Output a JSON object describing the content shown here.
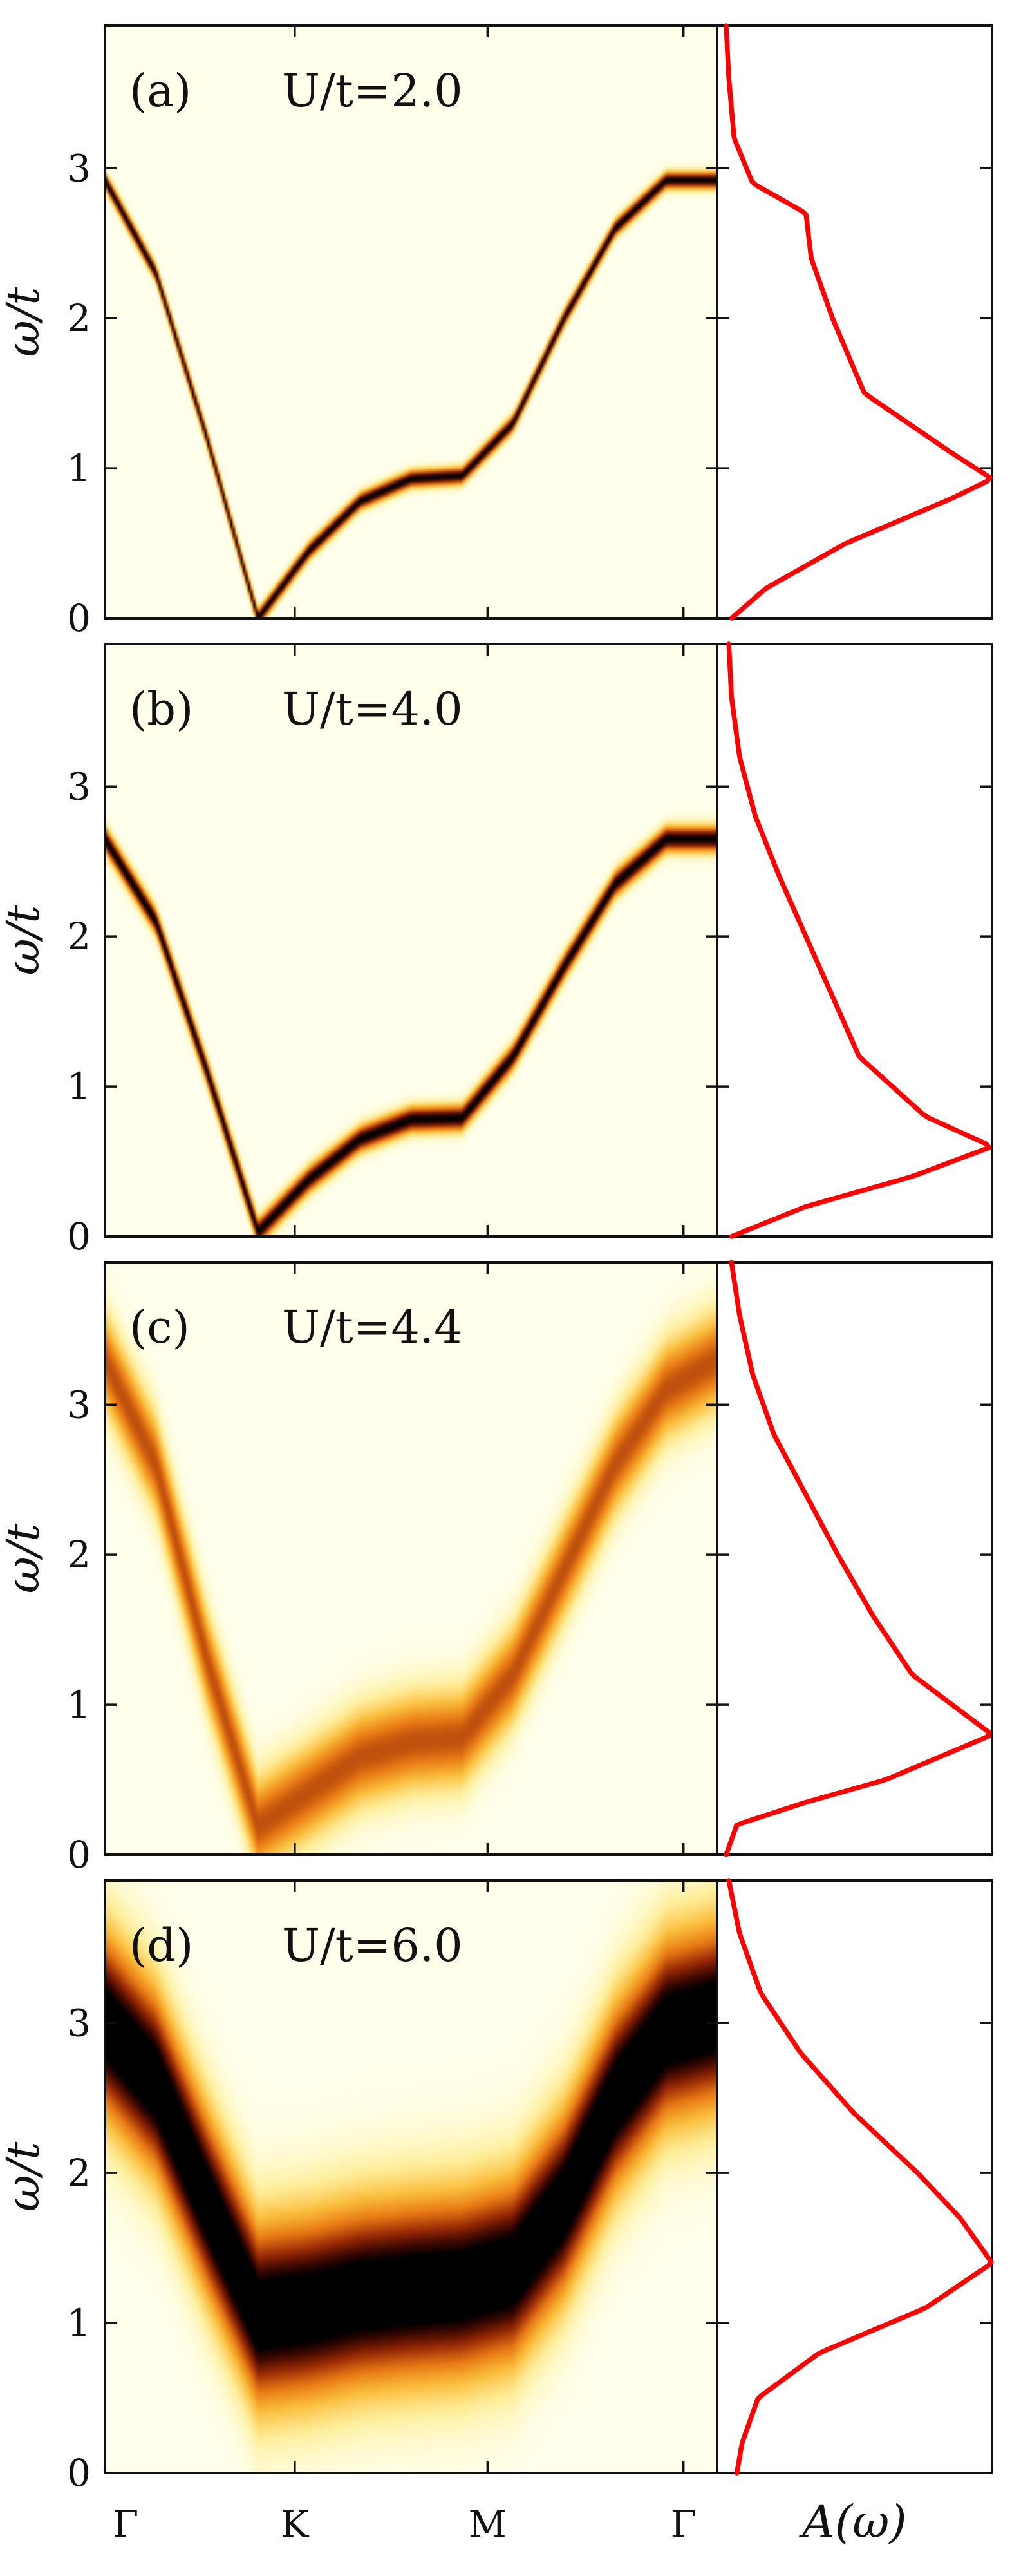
{
  "chart_data": {
    "type": "heatmap",
    "title": "",
    "ylabel": "ω/t",
    "ylim": [
      0,
      3.95
    ],
    "yticks": [
      0,
      1,
      2,
      3
    ],
    "ytick_labels": [
      "0",
      "1",
      "2",
      "3"
    ],
    "xtick_labels": [
      "Γ",
      "K",
      "M",
      "Γ"
    ],
    "dos_xlabel": "A(ω)",
    "colors": {
      "dos_line": "#ff0000",
      "spectral_peak": "#000000",
      "spectral_mid": "#f08a10",
      "spectral_background": "#ffffe6"
    },
    "colormap": "afmhot_r",
    "grid": false,
    "legend": "none",
    "panels": [
      {
        "label": "(a)",
        "param": "U/t=2.0",
        "dispersion": {
          "x": [
            0,
            0.25,
            0.5,
            0.75,
            1.0,
            1.25,
            1.5,
            1.75,
            2.0,
            2.25,
            2.5,
            2.75,
            3.0
          ],
          "omega": [
            2.92,
            2.3,
            1.2,
            0.0,
            0.45,
            0.78,
            0.93,
            0.95,
            1.3,
            2.0,
            2.6,
            2.92,
            2.92
          ]
        },
        "broadening": 0.04,
        "intensity": 1.0,
        "dos": {
          "omega": [
            0,
            0.2,
            0.5,
            0.8,
            0.93,
            1.1,
            1.5,
            2.0,
            2.4,
            2.7,
            2.9,
            3.2,
            3.6,
            3.95
          ],
          "A": [
            0.02,
            0.15,
            0.45,
            0.85,
            1.0,
            0.85,
            0.52,
            0.4,
            0.32,
            0.3,
            0.1,
            0.03,
            0.01,
            0.0
          ]
        }
      },
      {
        "label": "(b)",
        "param": "U/t=4.0",
        "dispersion": {
          "x": [
            0,
            0.25,
            0.5,
            0.75,
            1.0,
            1.25,
            1.5,
            1.75,
            2.0,
            2.25,
            2.5,
            2.75,
            3.0
          ],
          "omega": [
            2.65,
            2.1,
            1.1,
            0.03,
            0.38,
            0.65,
            0.78,
            0.79,
            1.2,
            1.8,
            2.35,
            2.65,
            2.65
          ]
        },
        "broadening": 0.06,
        "intensity": 1.0,
        "dos": {
          "omega": [
            0,
            0.2,
            0.4,
            0.6,
            0.8,
            1.2,
            1.6,
            2.0,
            2.4,
            2.8,
            3.2,
            3.6,
            3.95
          ],
          "A": [
            0.02,
            0.3,
            0.7,
            1.0,
            0.75,
            0.5,
            0.4,
            0.3,
            0.2,
            0.11,
            0.05,
            0.02,
            0.01
          ]
        }
      },
      {
        "label": "(c)",
        "param": "U/t=4.4",
        "dispersion": {
          "x": [
            0,
            0.25,
            0.5,
            0.75,
            1.0,
            1.25,
            1.5,
            1.75,
            2.0,
            2.25,
            2.5,
            2.75,
            3.0
          ],
          "omega": [
            3.3,
            2.6,
            1.3,
            0.19,
            0.42,
            0.65,
            0.75,
            0.78,
            1.2,
            1.9,
            2.6,
            3.1,
            3.3
          ]
        },
        "broadening": 0.22,
        "intensity": 0.65,
        "dos": {
          "omega": [
            0,
            0.1,
            0.2,
            0.35,
            0.5,
            0.8,
            1.2,
            1.6,
            2.0,
            2.4,
            2.8,
            3.2,
            3.6,
            3.95
          ],
          "A": [
            0.0,
            0.02,
            0.04,
            0.3,
            0.6,
            1.0,
            0.7,
            0.55,
            0.42,
            0.3,
            0.18,
            0.1,
            0.05,
            0.02
          ]
        }
      },
      {
        "label": "(d)",
        "param": "U/t=6.0",
        "dispersion": {
          "x": [
            0,
            0.25,
            0.5,
            0.75,
            1.0,
            1.25,
            1.5,
            1.75,
            2.0,
            2.25,
            2.5,
            2.75,
            3.0
          ],
          "omega": [
            3.0,
            2.6,
            1.8,
            1.05,
            1.1,
            1.18,
            1.22,
            1.25,
            1.35,
            1.8,
            2.5,
            2.95,
            3.05
          ]
        },
        "broadening": 0.42,
        "intensity": 1.15,
        "dos": {
          "omega": [
            0,
            0.2,
            0.5,
            0.8,
            1.1,
            1.4,
            1.7,
            2.0,
            2.4,
            2.8,
            3.2,
            3.6,
            3.95
          ],
          "A": [
            0.04,
            0.06,
            0.12,
            0.35,
            0.75,
            1.0,
            0.88,
            0.72,
            0.48,
            0.28,
            0.13,
            0.05,
            0.01
          ]
        }
      }
    ]
  }
}
